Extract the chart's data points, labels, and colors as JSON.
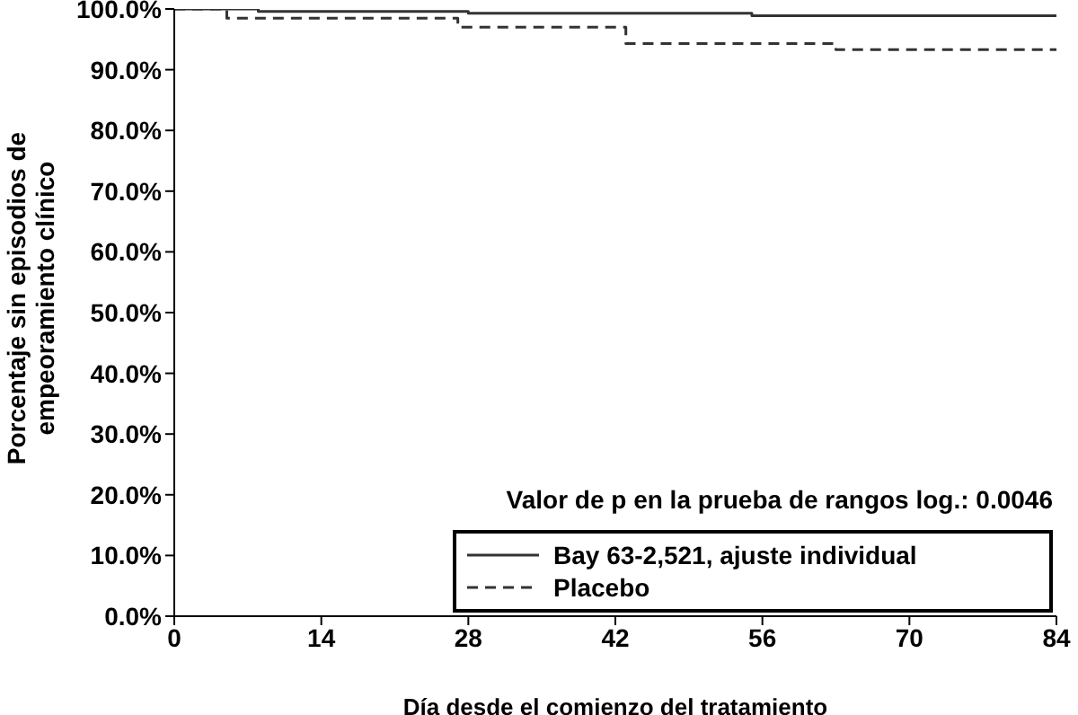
{
  "chart_data": {
    "type": "step",
    "xlabel": "Día desde el comienzo del tratamiento",
    "ylabel": "Porcentaje sin episodios de empeoramiento clínico",
    "annotations": [
      "Valor de p en la prueba de rangos log.: 0.0046"
    ],
    "xlim": [
      0,
      84
    ],
    "xticks": [
      0,
      14,
      28,
      42,
      56,
      70,
      84
    ],
    "ylim": [
      0,
      100
    ],
    "yticks": [
      {
        "value": 0,
        "label": "0.0%"
      },
      {
        "value": 10,
        "label": "10.0%"
      },
      {
        "value": 20,
        "label": "20.0%"
      },
      {
        "value": 30,
        "label": "30.0%"
      },
      {
        "value": 40,
        "label": "40.0%"
      },
      {
        "value": 50,
        "label": "50.0%"
      },
      {
        "value": 60,
        "label": "60.0%"
      },
      {
        "value": 70,
        "label": "70.0%"
      },
      {
        "value": 80,
        "label": "80.0%"
      },
      {
        "value": 90,
        "label": "90.0%"
      },
      {
        "value": 100,
        "label": "100.0%"
      }
    ],
    "grid": false,
    "legend": "bottom right",
    "marker": "none",
    "series": [
      {
        "name": "Bay 63-2,521, ajuste individual",
        "color": "#333333",
        "line_style": "solid",
        "x": [
          0,
          8,
          28,
          55,
          84
        ],
        "values": [
          100,
          99.6,
          99.3,
          98.9,
          98.9
        ]
      },
      {
        "name": "Placebo",
        "color": "#333333",
        "line_style": "dashed",
        "x": [
          0,
          5,
          27,
          43,
          63,
          84
        ],
        "values": [
          100,
          98.5,
          97.0,
          94.3,
          93.3,
          93.3
        ]
      }
    ]
  }
}
